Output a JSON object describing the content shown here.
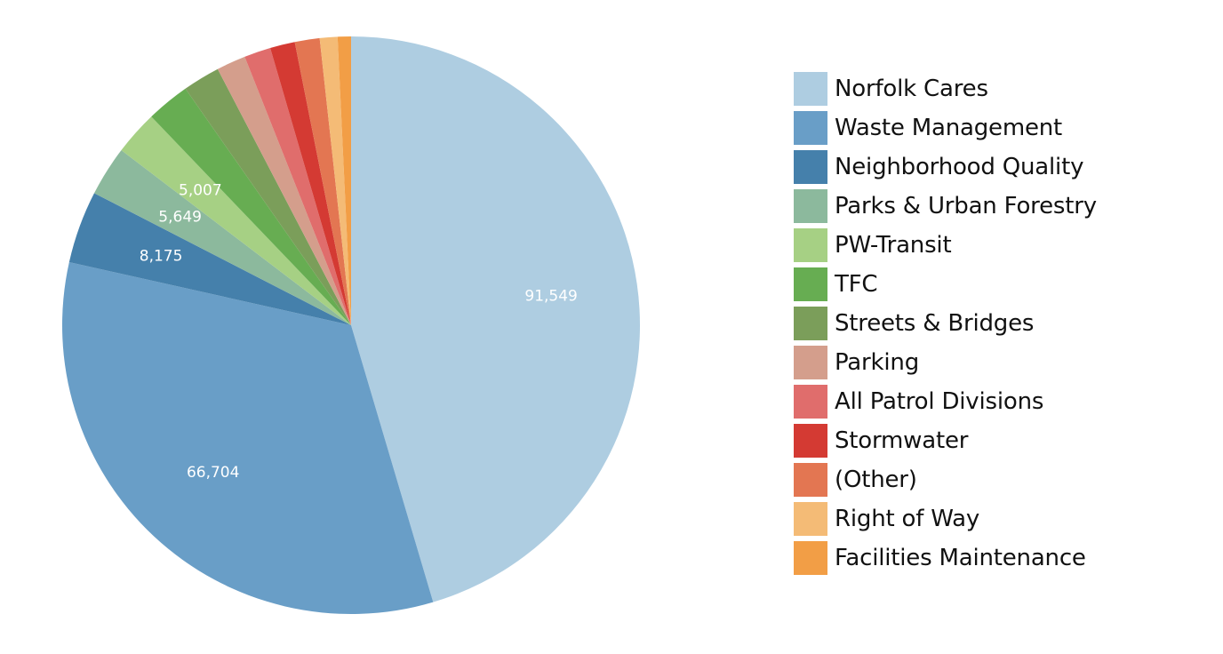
{
  "chart_data": {
    "type": "pie",
    "title": "",
    "legend_position": "right",
    "start": "top",
    "direction": "clockwise",
    "slices": [
      {
        "label": "Norfolk Cares",
        "value": 91549,
        "value_label": "91,549",
        "color": "#aecde1"
      },
      {
        "label": "Waste Management",
        "value": 66704,
        "value_label": "66,704",
        "color": "#699ec7"
      },
      {
        "label": "Neighborhood Quality",
        "value": 8175,
        "value_label": "8,175",
        "color": "#4580ab"
      },
      {
        "label": "Parks & Urban Forestry",
        "value": 5649,
        "value_label": "5,649",
        "color": "#8cb99d"
      },
      {
        "label": "PW-Transit",
        "value": 5007,
        "value_label": "5,007",
        "color": "#a6d084"
      },
      {
        "label": "TFC",
        "value": 4900,
        "value_label": "",
        "color": "#67ad52"
      },
      {
        "label": "Streets & Bridges",
        "value": 4200,
        "value_label": "",
        "color": "#7b9e5a"
      },
      {
        "label": "Parking",
        "value": 3300,
        "value_label": "",
        "color": "#d49e8c"
      },
      {
        "label": "All Patrol Divisions",
        "value": 3000,
        "value_label": "",
        "color": "#e06d6c"
      },
      {
        "label": "Stormwater",
        "value": 2800,
        "value_label": "",
        "color": "#d43a33"
      },
      {
        "label": "(Other)",
        "value": 2800,
        "value_label": "",
        "color": "#e37652"
      },
      {
        "label": "Right of Way",
        "value": 2000,
        "value_label": "",
        "color": "#f4bb76"
      },
      {
        "label": "Facilities Maintenance",
        "value": 1500,
        "value_label": "",
        "color": "#f29e46"
      }
    ]
  }
}
